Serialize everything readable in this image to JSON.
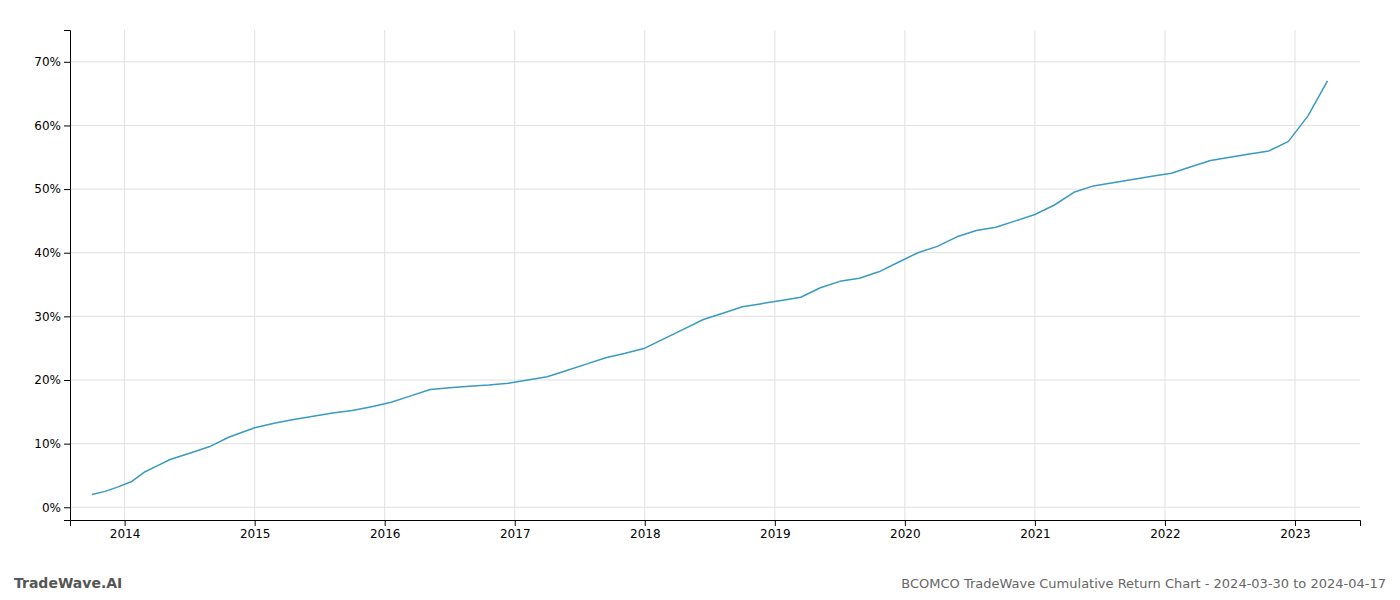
{
  "chart_data": {
    "type": "line",
    "title": "BCOMCO TradeWave Cumulative Return Chart - 2024-03-30 to 2024-04-17",
    "annotations": [
      "TradeWave.AI"
    ],
    "color": "#3a9abf",
    "grid": true,
    "x": [
      2013.75,
      2013.85,
      2013.95,
      2014.05,
      2014.15,
      2014.25,
      2014.35,
      2014.5,
      2014.65,
      2014.8,
      2015.0,
      2015.15,
      2015.3,
      2015.45,
      2015.6,
      2015.75,
      2015.9,
      2016.05,
      2016.2,
      2016.35,
      2016.5,
      2016.65,
      2016.8,
      2016.95,
      2017.1,
      2017.25,
      2017.4,
      2017.55,
      2017.7,
      2017.85,
      2018.0,
      2018.15,
      2018.3,
      2018.45,
      2018.6,
      2018.75,
      2018.9,
      2019.05,
      2019.2,
      2019.35,
      2019.5,
      2019.65,
      2019.8,
      2019.95,
      2020.1,
      2020.25,
      2020.4,
      2020.55,
      2020.7,
      2020.85,
      2021.0,
      2021.15,
      2021.3,
      2021.45,
      2021.6,
      2021.75,
      2021.9,
      2022.05,
      2022.2,
      2022.35,
      2022.5,
      2022.65,
      2022.8,
      2022.95,
      2023.1,
      2023.25
    ],
    "values": [
      2.0,
      2.5,
      3.2,
      4.0,
      5.5,
      6.5,
      7.5,
      8.5,
      9.5,
      11.0,
      12.5,
      13.2,
      13.8,
      14.3,
      14.8,
      15.2,
      15.8,
      16.5,
      17.5,
      18.5,
      18.8,
      19.0,
      19.2,
      19.5,
      20.0,
      20.5,
      21.5,
      22.5,
      23.5,
      24.2,
      25.0,
      26.5,
      28.0,
      29.5,
      30.5,
      31.5,
      32.0,
      32.5,
      33.0,
      34.5,
      35.5,
      36.0,
      37.0,
      38.5,
      40.0,
      41.0,
      42.5,
      43.5,
      44.0,
      45.0,
      46.0,
      47.5,
      49.5,
      50.5,
      51.0,
      51.5,
      52.0,
      52.5,
      53.5,
      54.5,
      55.0,
      55.5,
      56.0,
      57.5,
      61.5,
      67.0
    ],
    "xlim": [
      2013.58,
      2023.5
    ],
    "xticks": [
      2014,
      2015,
      2016,
      2017,
      2018,
      2019,
      2020,
      2021,
      2022,
      2023
    ],
    "ylim": [
      -2,
      75
    ],
    "yticks": [
      {
        "value": 0,
        "label": "0%"
      },
      {
        "value": 10,
        "label": "10%"
      },
      {
        "value": 20,
        "label": "20%"
      },
      {
        "value": 30,
        "label": "30%"
      },
      {
        "value": 40,
        "label": "40%"
      },
      {
        "value": 50,
        "label": "50%"
      },
      {
        "value": 60,
        "label": "60%"
      },
      {
        "value": 70,
        "label": "70%"
      }
    ]
  }
}
